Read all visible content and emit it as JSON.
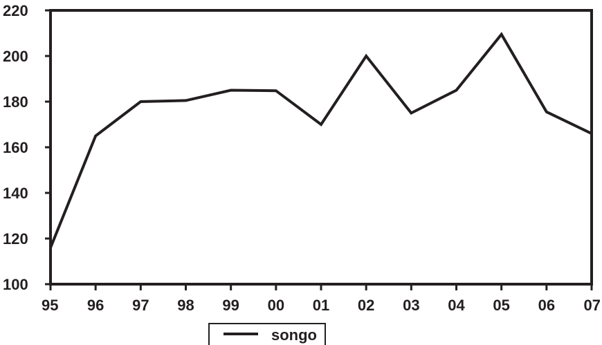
{
  "chart_data": {
    "type": "line",
    "title": "",
    "xlabel": "",
    "ylabel": "",
    "categories": [
      "95",
      "96",
      "97",
      "98",
      "99",
      "00",
      "01",
      "02",
      "03",
      "04",
      "05",
      "06",
      "07"
    ],
    "series": [
      {
        "name": "songo",
        "values": [
          116,
          165,
          180,
          180.5,
          185,
          184.8,
          170,
          200,
          175,
          185,
          209.5,
          175.5,
          166
        ]
      }
    ],
    "ylim": [
      100,
      220
    ],
    "yticks": [
      "100",
      "120",
      "140",
      "160",
      "180",
      "200",
      "220"
    ],
    "grid": false,
    "legend_position": "bottom",
    "line_color": "#231f20"
  }
}
